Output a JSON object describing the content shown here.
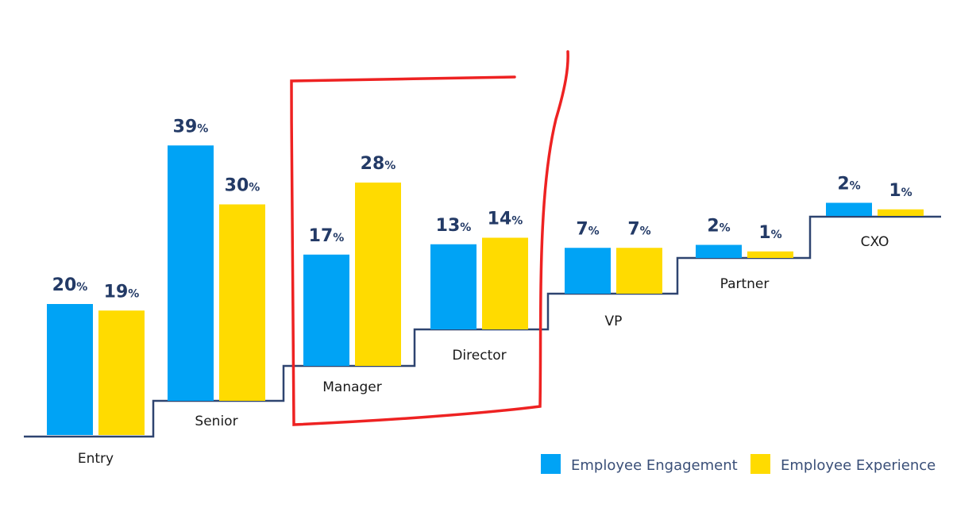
{
  "chart_data": {
    "type": "bar",
    "categories": [
      "Entry",
      "Senior",
      "Manager",
      "Director",
      "VP",
      "Partner",
      "CXO"
    ],
    "series": [
      {
        "name": "Employee Engagement",
        "color": "#00A3F5",
        "values": [
          20,
          39,
          17,
          13,
          7,
          2,
          2
        ]
      },
      {
        "name": "Employee Experience",
        "color": "#FFDB00",
        "values": [
          19,
          30,
          28,
          14,
          7,
          1,
          1
        ]
      }
    ],
    "value_suffix": "%",
    "legend_position": "bottom-right",
    "grid": false,
    "layout_style": "staircase baseline, each category on a higher step",
    "highlight": {
      "categories": [
        "Manager",
        "Director"
      ],
      "style": "hand-drawn red box",
      "color": "#EE2222"
    },
    "text_color": "#233A66",
    "step_line_color": "#2E4470"
  }
}
